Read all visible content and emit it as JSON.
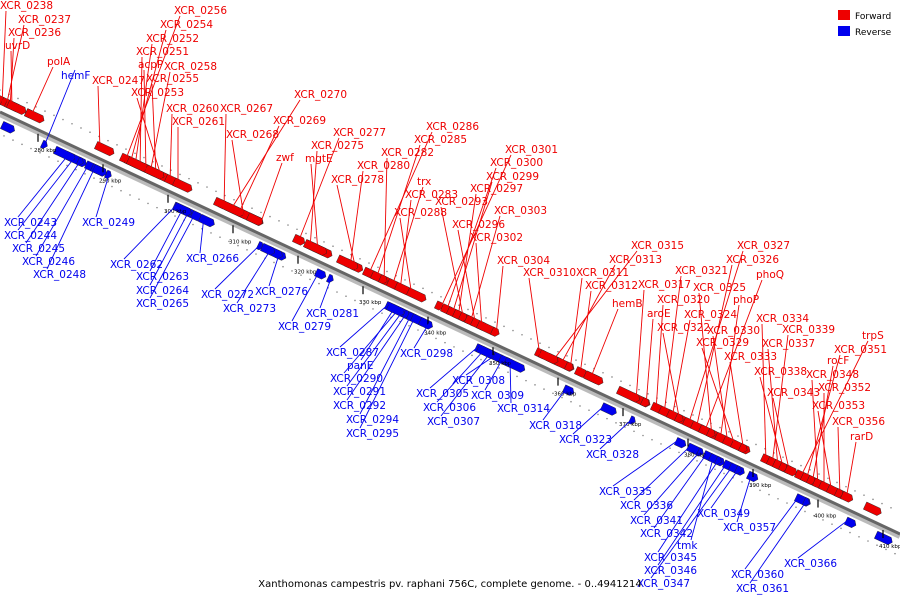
{
  "caption": "Xanthomonas campestris pv. raphani 756C, complete genome. - 0..4941214",
  "legend": [
    {
      "label": "Forward",
      "color": "#ee0000"
    },
    {
      "label": "Reverse",
      "color": "#0000ee"
    }
  ],
  "ticks": [
    "280 kbp",
    "290 kbp",
    "300 kbp",
    "310 kbp",
    "320 kbp",
    "330 kbp",
    "340 kbp",
    "350 kbp",
    "360 kbp",
    "370 kbp",
    "380 kbp",
    "390 kbp",
    "400 kbp",
    "410 kbp"
  ],
  "forward_genes": [
    "XCR_0238",
    "XCR_0237",
    "XCR_0236",
    "uvrD",
    "polA",
    "XCR_0256",
    "XCR_0254",
    "XCR_0252",
    "XCR_0251",
    "acpP",
    "XCR_0258",
    "XCR_0247",
    "XCR_0255",
    "XCR_0253",
    "XCR_0260",
    "XCR_0261",
    "XCR_0267",
    "XCR_0270",
    "XCR_0269",
    "XCR_0268",
    "zwf",
    "XCR_0277",
    "XCR_0275",
    "mgtE",
    "XCR_0280",
    "XCR_0278",
    "XCR_0286",
    "XCR_0285",
    "XCR_0282",
    "trx",
    "XCR_0283",
    "XCR_0288",
    "XCR_0301",
    "XCR_0300",
    "XCR_0299",
    "XCR_0297",
    "XCR_0293",
    "XCR_0303",
    "XCR_0296",
    "XCR_0302",
    "XCR_0304",
    "XCR_0310",
    "XCR_0315",
    "XCR_0313",
    "XCR_0311",
    "XCR_0312",
    "hemB",
    "XCR_0317",
    "aroE",
    "XCR_0320",
    "XCR_0321",
    "XCR_0324",
    "XCR_0322",
    "XCR_0327",
    "XCR_0326",
    "phoQ",
    "XCR_0325",
    "phoP",
    "XCR_0330",
    "XCR_0329",
    "XCR_0333",
    "XCR_0334",
    "XCR_0339",
    "XCR_0337",
    "XCR_0338",
    "XCR_0343",
    "trpS",
    "XCR_0351",
    "rocF",
    "XCR_0348",
    "XCR_0352",
    "XCR_0353",
    "XCR_0356",
    "rarD"
  ],
  "reverse_genes": [
    "hemF",
    "XCR_0243",
    "XCR_0244",
    "XCR_0245",
    "XCR_0246",
    "XCR_0248",
    "XCR_0249",
    "XCR_0262",
    "XCR_0263",
    "XCR_0264",
    "XCR_0265",
    "XCR_0266",
    "XCR_0272",
    "XCR_0276",
    "XCR_0273",
    "XCR_0281",
    "XCR_0279",
    "XCR_0287",
    "panE",
    "XCR_0290",
    "XCR_0291",
    "XCR_0292",
    "XCR_0294",
    "XCR_0295",
    "XCR_0298",
    "XCR_0305",
    "XCR_0306",
    "XCR_0307",
    "XCR_0308",
    "XCR_0309",
    "XCR_0314",
    "XCR_0318",
    "XCR_0323",
    "XCR_0328",
    "XCR_0335",
    "XCR_0336",
    "XCR_0341",
    "XCR_0342",
    "tmk",
    "XCR_0345",
    "XCR_0346",
    "XCR_0347",
    "XCR_0349",
    "XCR_0357",
    "XCR_0360",
    "XCR_0361",
    "XCR_0366"
  ]
}
